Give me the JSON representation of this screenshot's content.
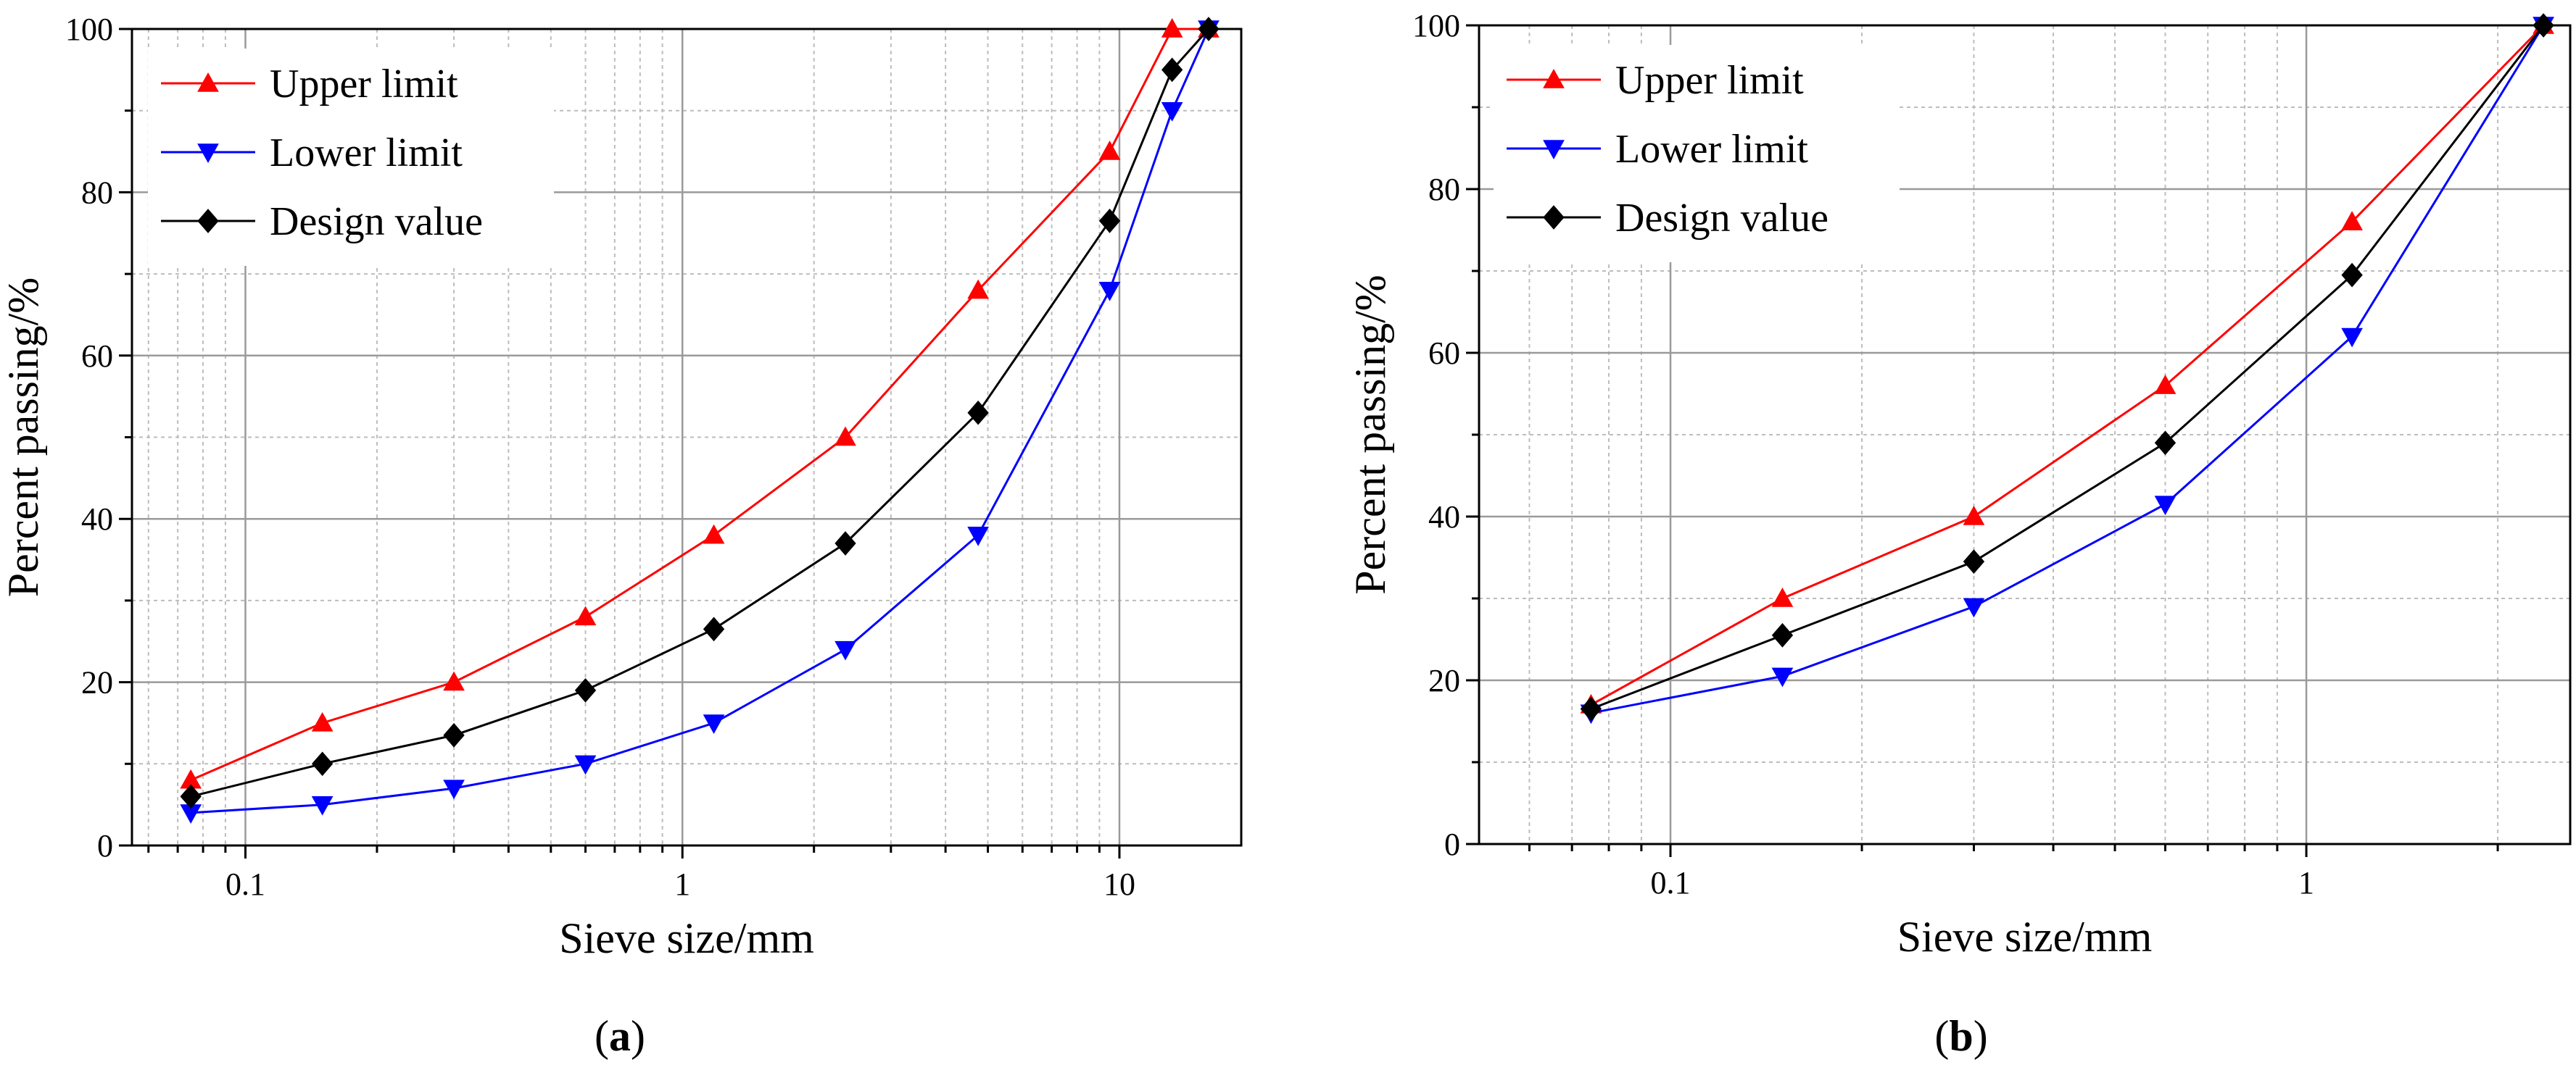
{
  "figure": {
    "caption_a": {
      "open": "(",
      "letter": "a",
      "close": ")"
    },
    "caption_b": {
      "open": "(",
      "letter": "b",
      "close": ")"
    }
  },
  "chart_data": [
    {
      "id": "a",
      "type": "line",
      "xscale": "log",
      "xlabel": "Sieve size/mm",
      "ylabel": "Percent passing/%",
      "xlim": [
        0.055,
        19
      ],
      "ylim": [
        0,
        100
      ],
      "xticks": [
        0.1,
        1,
        10
      ],
      "xtick_labels": [
        "0.1",
        "1",
        "10"
      ],
      "yticks": [
        0,
        20,
        40,
        60,
        80,
        100
      ],
      "ytick_labels": [
        "0",
        "20",
        "40",
        "60",
        "80",
        "100"
      ],
      "grid": true,
      "legend_position": "top-left",
      "x": [
        0.075,
        0.15,
        0.3,
        0.6,
        1.18,
        2.36,
        4.75,
        9.5,
        13.2,
        16
      ],
      "series": [
        {
          "name": "Upper limit",
          "color": "#ff0000",
          "marker": "triangle-up",
          "values": [
            8,
            15,
            20,
            28,
            38,
            50,
            68,
            85,
            100,
            100
          ]
        },
        {
          "name": "Lower limit",
          "color": "#0000ff",
          "marker": "triangle-down",
          "values": [
            4,
            5,
            7,
            10,
            15,
            24,
            38,
            68,
            90,
            100
          ]
        },
        {
          "name": "Design value",
          "color": "#000000",
          "marker": "diamond",
          "values": [
            6,
            10,
            13.5,
            19,
            26.5,
            37,
            53,
            76.5,
            95,
            100
          ]
        }
      ]
    },
    {
      "id": "b",
      "type": "line",
      "xscale": "log",
      "xlabel": "Sieve size/mm",
      "ylabel": "Percent passing/%",
      "xlim": [
        0.05,
        2.6
      ],
      "ylim": [
        0,
        100
      ],
      "xticks": [
        0.1,
        1
      ],
      "xtick_labels": [
        "0.1",
        "1"
      ],
      "yticks": [
        0,
        20,
        40,
        60,
        80,
        100
      ],
      "ytick_labels": [
        "0",
        "20",
        "40",
        "60",
        "80",
        "100"
      ],
      "grid": true,
      "legend_position": "top-left",
      "x": [
        0.075,
        0.15,
        0.3,
        0.6,
        1.18,
        2.36
      ],
      "series": [
        {
          "name": "Upper limit",
          "color": "#ff0000",
          "marker": "triangle-up",
          "values": [
            17,
            30,
            40,
            56,
            76,
            100
          ]
        },
        {
          "name": "Lower limit",
          "color": "#0000ff",
          "marker": "triangle-down",
          "values": [
            16,
            20.5,
            29,
            41.5,
            62,
            100
          ]
        },
        {
          "name": "Design value",
          "color": "#000000",
          "marker": "diamond",
          "values": [
            16.5,
            25.5,
            34.5,
            49,
            69.5,
            100
          ]
        }
      ]
    }
  ]
}
